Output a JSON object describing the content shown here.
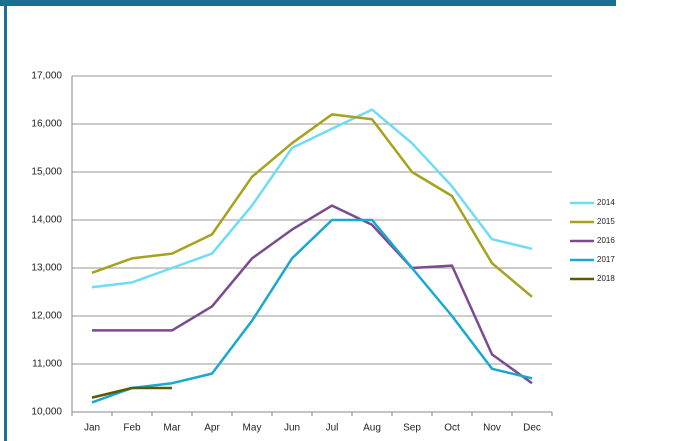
{
  "chart_data": {
    "type": "line",
    "categories": [
      "Jan",
      "Feb",
      "Mar",
      "Apr",
      "May",
      "Jun",
      "Jul",
      "Aug",
      "Sep",
      "Oct",
      "Nov",
      "Dec"
    ],
    "series": [
      {
        "name": "2014",
        "color": "#6fdcf5",
        "values": [
          12600,
          12700,
          13000,
          13300,
          14300,
          15500,
          15900,
          16300,
          15600,
          14700,
          13600,
          13400
        ]
      },
      {
        "name": "2015",
        "color": "#a6a21e",
        "values": [
          12900,
          13200,
          13300,
          13700,
          14900,
          15600,
          16200,
          16100,
          15000,
          14500,
          13100,
          12400
        ]
      },
      {
        "name": "2016",
        "color": "#7b4a8f",
        "values": [
          11700,
          11700,
          11700,
          12200,
          13200,
          13800,
          14300,
          13900,
          13000,
          13050,
          11200,
          10600
        ]
      },
      {
        "name": "2017",
        "color": "#1aa8d0",
        "values": [
          10200,
          10500,
          10600,
          10800,
          11900,
          13200,
          14000,
          14000,
          13000,
          12000,
          10900,
          10700
        ]
      },
      {
        "name": "2018",
        "color": "#5a5a00",
        "values": [
          10300,
          10500,
          10500,
          null,
          null,
          null,
          null,
          null,
          null,
          null,
          null,
          null
        ]
      }
    ],
    "ylim": [
      10000,
      17000
    ],
    "yticks": [
      {
        "value": 10000,
        "label": "10,000"
      },
      {
        "value": 11000,
        "label": "11,000"
      },
      {
        "value": 12000,
        "label": "12,000"
      },
      {
        "value": 13000,
        "label": "13,000"
      },
      {
        "value": 14000,
        "label": "14,000"
      },
      {
        "value": 15000,
        "label": "15,000"
      },
      {
        "value": 16000,
        "label": "16,000"
      },
      {
        "value": 17000,
        "label": "17,000"
      }
    ],
    "grid": true,
    "legend": "right"
  }
}
